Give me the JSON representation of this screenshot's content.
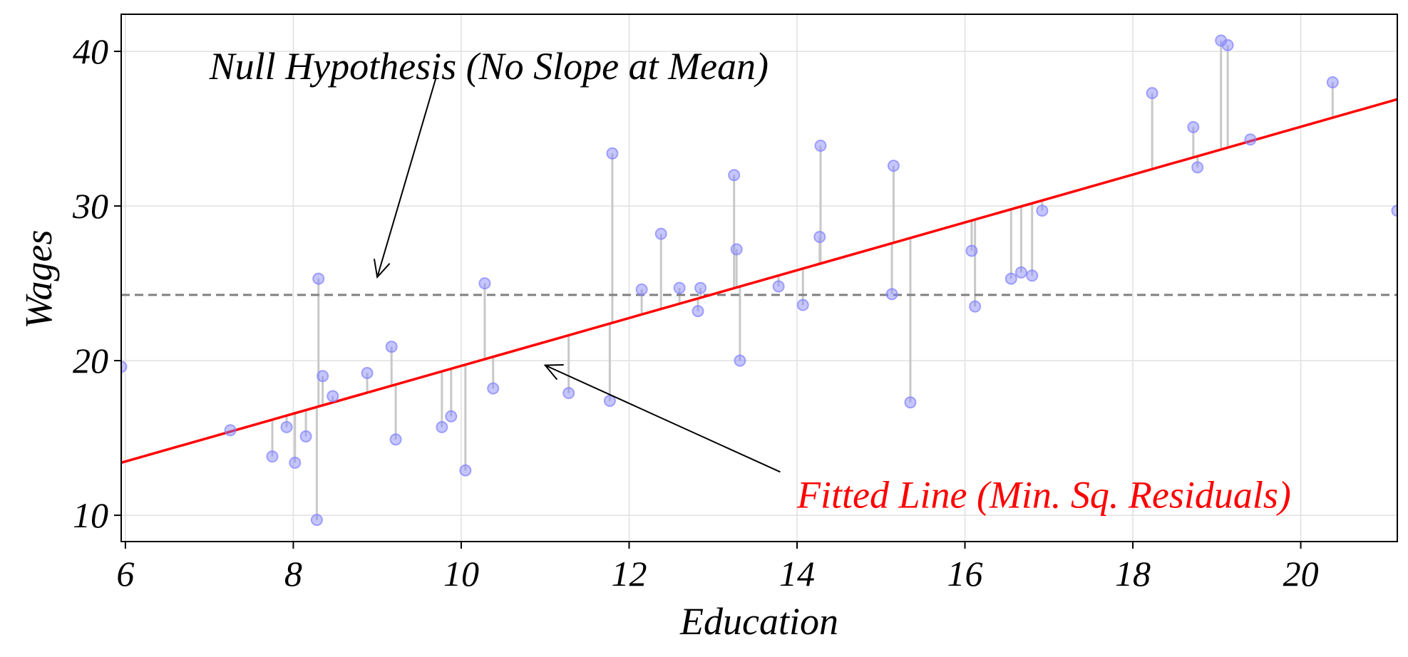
{
  "chart_data": {
    "type": "scatter",
    "xlabel": "Education",
    "ylabel": "Wages",
    "xlim": [
      5.95,
      21.15
    ],
    "ylim": [
      8.3,
      42.4
    ],
    "xticks": [
      6,
      8,
      10,
      12,
      14,
      16,
      18,
      20
    ],
    "yticks": [
      10,
      20,
      30,
      40
    ],
    "grid": true,
    "colors": {
      "points": "#8080ff",
      "fit": "#ff0000",
      "mean": "#808080",
      "residual": "#c8c8c8",
      "grid": "#e0e0e0"
    },
    "series": [
      {
        "kind": "points",
        "x": [
          5.95,
          7.25,
          7.75,
          7.92,
          8.02,
          8.15,
          8.28,
          8.3,
          8.35,
          8.47,
          8.88,
          9.17,
          9.22,
          9.77,
          9.88,
          10.05,
          10.28,
          10.38,
          11.28,
          11.77,
          11.8,
          12.15,
          12.38,
          12.6,
          12.82,
          12.85,
          13.25,
          13.28,
          13.32,
          13.78,
          14.07,
          14.27,
          14.28,
          15.13,
          15.15,
          15.35,
          16.08,
          16.12,
          16.55,
          16.67,
          16.8,
          16.92,
          18.23,
          18.72,
          18.77,
          19.05,
          19.13,
          19.4,
          20.38,
          21.15
        ],
        "y": [
          19.6,
          15.5,
          13.8,
          15.7,
          13.4,
          15.1,
          9.7,
          25.3,
          19.0,
          17.7,
          19.2,
          20.9,
          14.9,
          15.7,
          16.4,
          12.9,
          25.0,
          18.2,
          17.9,
          17.4,
          33.4,
          24.6,
          28.2,
          24.7,
          23.2,
          24.7,
          32.0,
          27.2,
          20.0,
          24.8,
          23.6,
          28.0,
          33.9,
          24.3,
          32.6,
          17.3,
          27.1,
          23.5,
          25.3,
          25.7,
          25.5,
          29.7,
          37.3,
          35.1,
          32.5,
          40.7,
          40.4,
          34.3,
          38.0,
          29.7
        ]
      },
      {
        "kind": "fitted-line",
        "x": [
          5.95,
          21.15
        ],
        "y": [
          13.4,
          36.9
        ]
      },
      {
        "kind": "mean-line",
        "y": 24.25
      }
    ],
    "annotations": [
      {
        "text": "Null Hypothesis (No Slope at Mean)",
        "x": 7.0,
        "y": 38.2,
        "color": "#000000",
        "arrow_from": [
          9.7,
          38.3
        ],
        "arrow_to": [
          9.0,
          25.4
        ]
      },
      {
        "text": "Fitted Line (Min. Sq. Residuals)",
        "x": 14.0,
        "y": 10.5,
        "color": "#ff0000",
        "arrow_from": [
          13.8,
          12.8
        ],
        "arrow_to": [
          11.0,
          19.7
        ]
      }
    ]
  }
}
